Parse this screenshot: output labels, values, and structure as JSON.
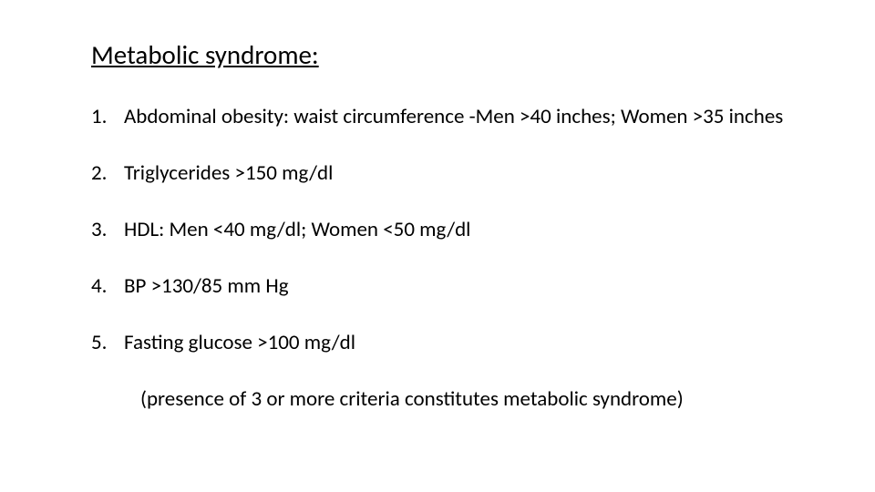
{
  "title": "Metabolic syndrome:",
  "criteria": {
    "items": [
      "Abdominal obesity: waist circumference -Men >40 inches; Women >35 inches",
      "Triglycerides >150 mg/dl",
      "HDL: Men <40 mg/dl; Women <50 mg/dl",
      "BP >130/85 mm Hg",
      "Fasting glucose >100 mg/dl"
    ]
  },
  "footerNote": "(presence of 3 or more criteria constitutes metabolic syndrome)",
  "styling": {
    "background_color": "#ffffff",
    "text_color": "#000000",
    "title_fontsize": 29,
    "body_fontsize": 23,
    "font_family": "Calibri",
    "title_underline": true,
    "item_spacing": 34,
    "title_margin_bottom": 36
  }
}
